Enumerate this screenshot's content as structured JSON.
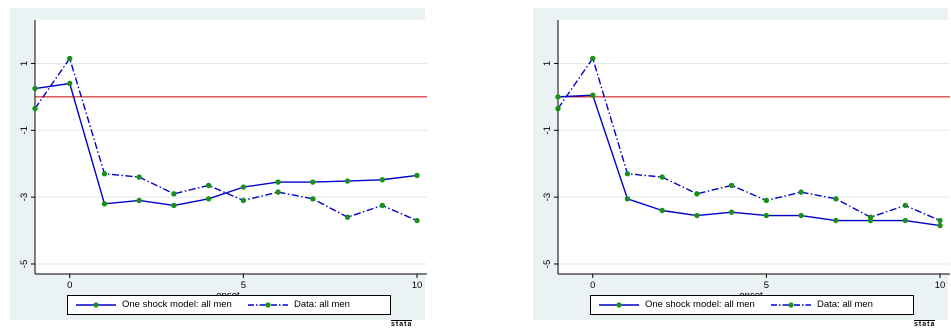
{
  "chart_data": [
    {
      "type": "line",
      "xlabel": "onset",
      "ylabel": "",
      "xlim": [
        -1,
        10
      ],
      "ylim": [
        -5.3,
        2.3
      ],
      "x_ticks": [
        0,
        5,
        10
      ],
      "y_ticks": [
        -5,
        -3,
        -1,
        1
      ],
      "reference_line": 0,
      "legend_position": "bottom",
      "x": [
        -1,
        0,
        1,
        2,
        3,
        4,
        5,
        6,
        7,
        8,
        9,
        10
      ],
      "series": [
        {
          "name": "One shock model: all men",
          "style": "solid",
          "values": [
            0.25,
            0.4,
            -3.2,
            -3.1,
            -3.25,
            -3.05,
            -2.7,
            -2.55,
            -2.55,
            -2.52,
            -2.48,
            -2.35
          ]
        },
        {
          "name": "Data: all men",
          "style": "dash-dot",
          "values": [
            -0.35,
            1.15,
            -2.3,
            -2.4,
            -2.9,
            -2.65,
            -3.1,
            -2.85,
            -3.05,
            -3.6,
            -3.25,
            -3.7
          ]
        }
      ]
    },
    {
      "type": "line",
      "xlabel": "onset",
      "ylabel": "",
      "xlim": [
        -1,
        10
      ],
      "ylim": [
        -5.3,
        2.3
      ],
      "x_ticks": [
        0,
        5,
        10
      ],
      "y_ticks": [
        -5,
        -3,
        -1,
        1
      ],
      "reference_line": 0,
      "legend_position": "bottom",
      "x": [
        -1,
        0,
        1,
        2,
        3,
        4,
        5,
        6,
        7,
        8,
        9,
        10
      ],
      "series": [
        {
          "name": "One shock model: all men",
          "style": "solid",
          "values": [
            0.0,
            0.05,
            -3.05,
            -3.4,
            -3.55,
            -3.45,
            -3.55,
            -3.55,
            -3.7,
            -3.7,
            -3.7,
            -3.85
          ]
        },
        {
          "name": "Data: all men",
          "style": "dash-dot",
          "values": [
            -0.35,
            1.15,
            -2.3,
            -2.4,
            -2.9,
            -2.65,
            -3.1,
            -2.85,
            -3.05,
            -3.6,
            -3.25,
            -3.7
          ]
        }
      ]
    }
  ],
  "colors": {
    "series_line": "#0000cc",
    "marker": "#1a8f1a",
    "reference_line": "#cc0000",
    "panel_bg": "#eaf2f3",
    "plot_bg": "#ffffff",
    "grid": "#dde9ea"
  },
  "logo_text": "stata"
}
